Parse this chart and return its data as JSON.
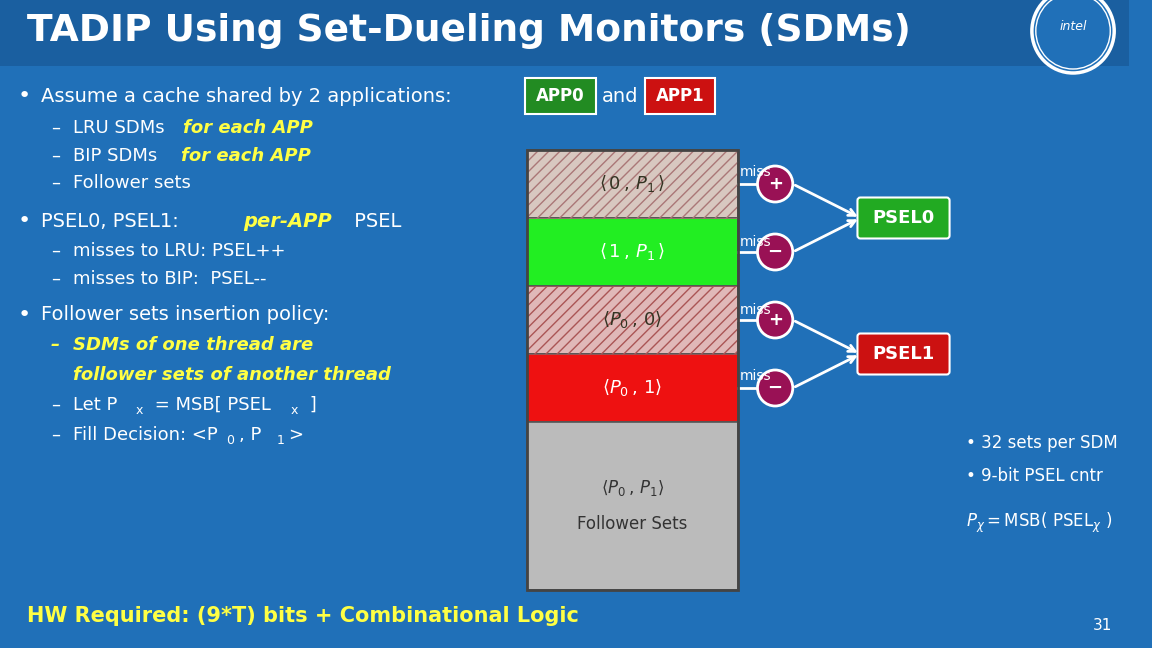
{
  "bg_color": "#2070b8",
  "title": "TADIP Using Set-Dueling Monitors (SDMs)",
  "title_color": "#ffffff",
  "title_fontsize": 26,
  "slide_number": "31",
  "yellow_color": "#ffff44",
  "app0_bg": "#228B22",
  "app1_bg": "#cc1111",
  "psel0_bg": "#22aa22",
  "psel1_bg": "#cc1111",
  "footer_color": "#ffff44",
  "sec_colors": [
    "#d4c4c4",
    "#22dd22",
    "#e0b0b0",
    "#dd1111",
    "#b8b8b8"
  ],
  "sec_hatches": [
    "x",
    "",
    "x",
    "",
    ""
  ],
  "hatch_colors": [
    "#aa7777",
    "",
    "#aa5555",
    "",
    ""
  ]
}
